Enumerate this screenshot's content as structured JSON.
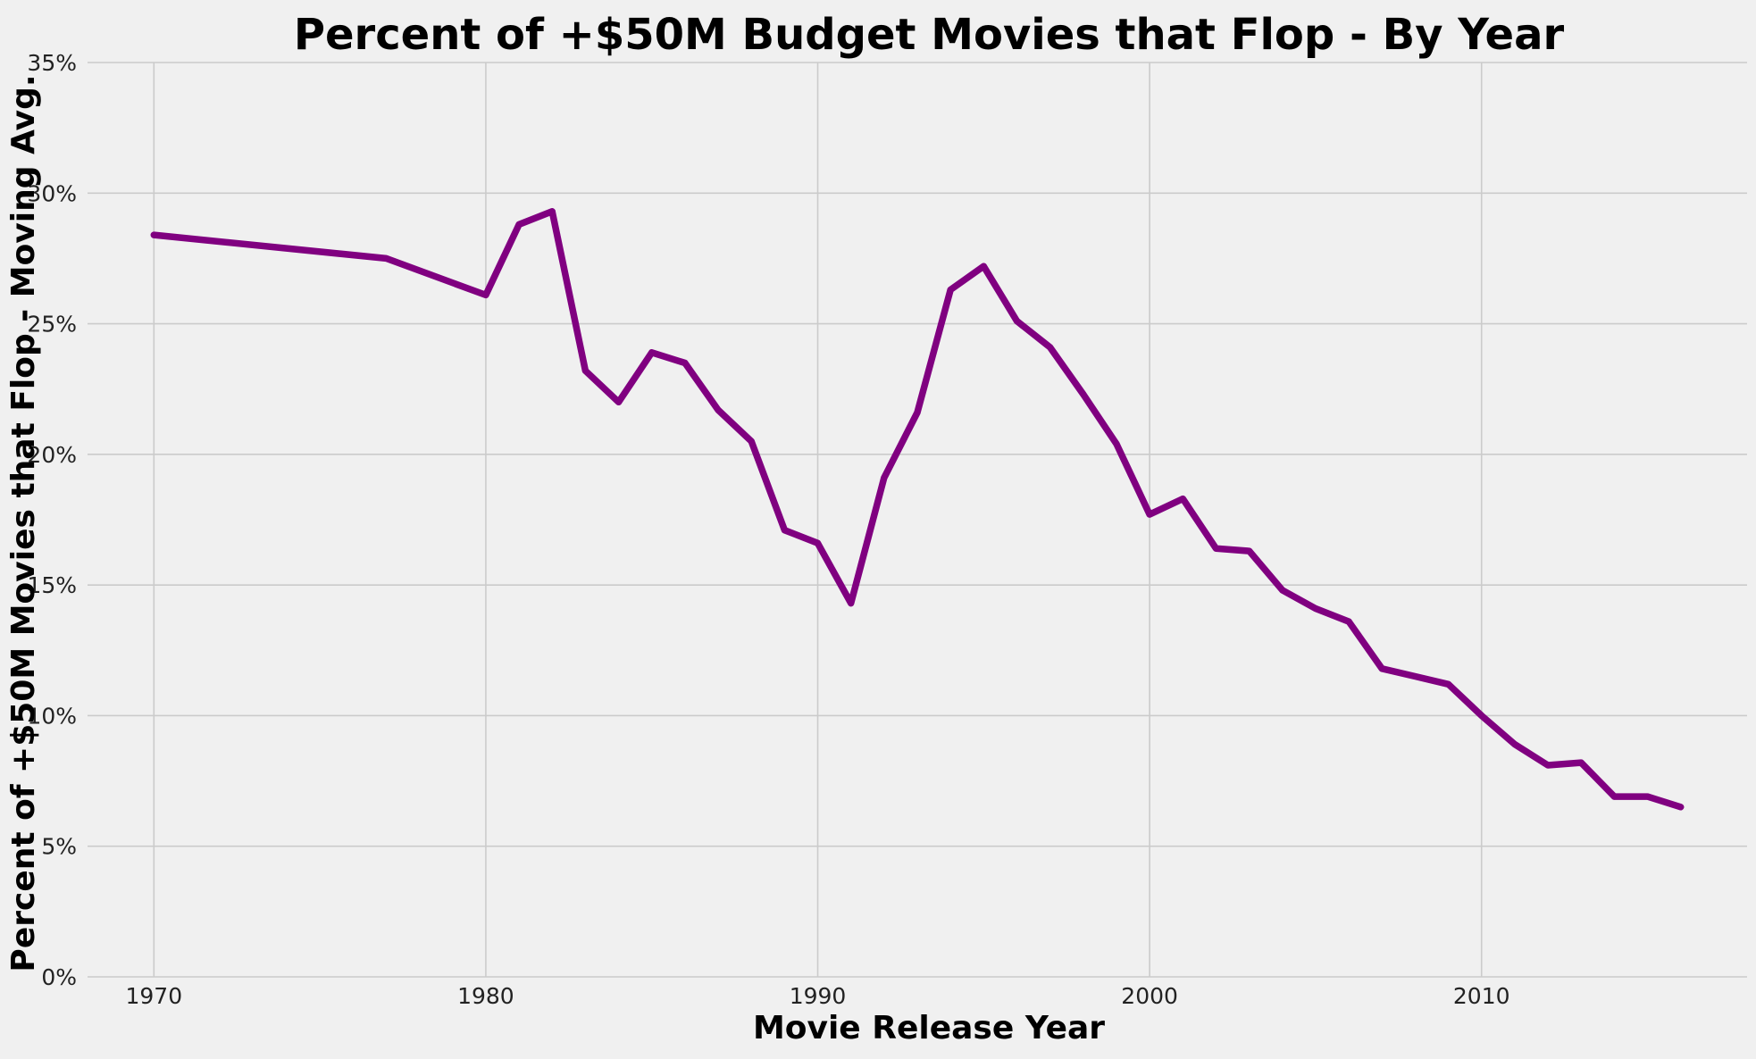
{
  "chart_data": {
    "type": "line",
    "title": "Percent of +$50M Budget Movies that Flop - By Year",
    "xlabel": "Movie Release Year",
    "ylabel": "Percent of +$50M Movies that Flop - Moving Avg.",
    "xlim": [
      1968,
      2018
    ],
    "ylim": [
      0,
      35
    ],
    "x_ticks": [
      1970,
      1980,
      1990,
      2000,
      2010
    ],
    "x_tick_labels": [
      "1970",
      "1980",
      "1990",
      "2000",
      "2010"
    ],
    "y_ticks": [
      0,
      5,
      10,
      15,
      20,
      25,
      30,
      35
    ],
    "y_tick_labels": [
      "0%",
      "5%",
      "10%",
      "15%",
      "20%",
      "25%",
      "30%",
      "35%"
    ],
    "grid": true,
    "background_color": "#f0f0f0",
    "grid_color": "#cbcbcb",
    "series": [
      {
        "color": "#800080",
        "x": [
          1970,
          1977,
          1980,
          1981,
          1982,
          1983,
          1984,
          1985,
          1986,
          1987,
          1988,
          1989,
          1990,
          1991,
          1992,
          1993,
          1994,
          1995,
          1996,
          1997,
          1998,
          1999,
          2000,
          2001,
          2002,
          2003,
          2004,
          2005,
          2006,
          2007,
          2008,
          2009,
          2010,
          2011,
          2012,
          2013,
          2014,
          2015,
          2016
        ],
        "y": [
          28.4,
          27.5,
          26.1,
          28.8,
          29.3,
          23.2,
          22.0,
          23.9,
          23.5,
          21.7,
          20.5,
          17.1,
          16.6,
          14.3,
          19.1,
          21.6,
          26.3,
          27.2,
          25.1,
          24.1,
          22.3,
          20.4,
          17.7,
          18.3,
          16.4,
          16.3,
          14.8,
          14.1,
          13.6,
          11.8,
          11.5,
          11.2,
          10.0,
          8.9,
          8.1,
          8.2,
          6.9,
          6.9,
          6.5
        ]
      }
    ]
  }
}
